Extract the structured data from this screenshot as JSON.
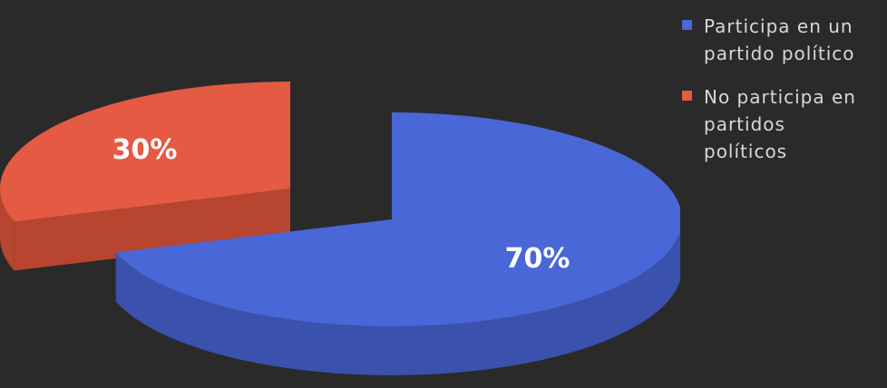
{
  "chart_data": {
    "type": "pie",
    "title": "",
    "slices": [
      {
        "label": "Participa en un\npartido político",
        "value": 70,
        "data_label": "70%",
        "color": "#4a67d8",
        "side_color": "#3a52ad"
      },
      {
        "label": "No participa en\npartidos\npolíticos",
        "value": 30,
        "data_label": "30%",
        "color": "#e45a43",
        "side_color": "#b8452f"
      }
    ],
    "legend_position": "right",
    "style": "3d-exploded",
    "background": "#2a2a2a"
  }
}
